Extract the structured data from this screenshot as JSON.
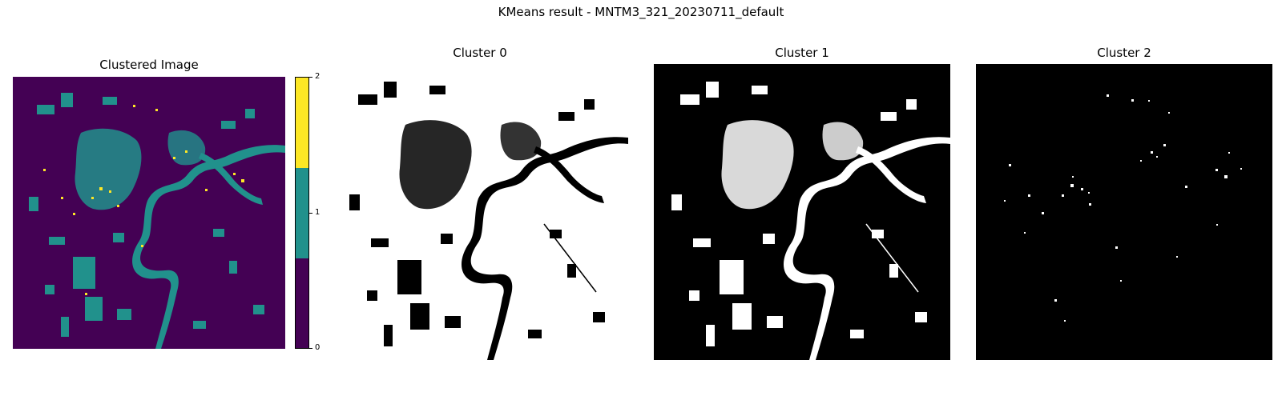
{
  "figure": {
    "suptitle": "KMeans result - MNTM3_321_20230711_default"
  },
  "panels": [
    {
      "title": "Clustered Image"
    },
    {
      "title": "Cluster 0"
    },
    {
      "title": "Cluster 1"
    },
    {
      "title": "Cluster 2"
    }
  ],
  "colorbar": {
    "ticks": [
      "0",
      "1",
      "2"
    ],
    "colors": [
      "#440154",
      "#21918c",
      "#fde725"
    ]
  }
}
